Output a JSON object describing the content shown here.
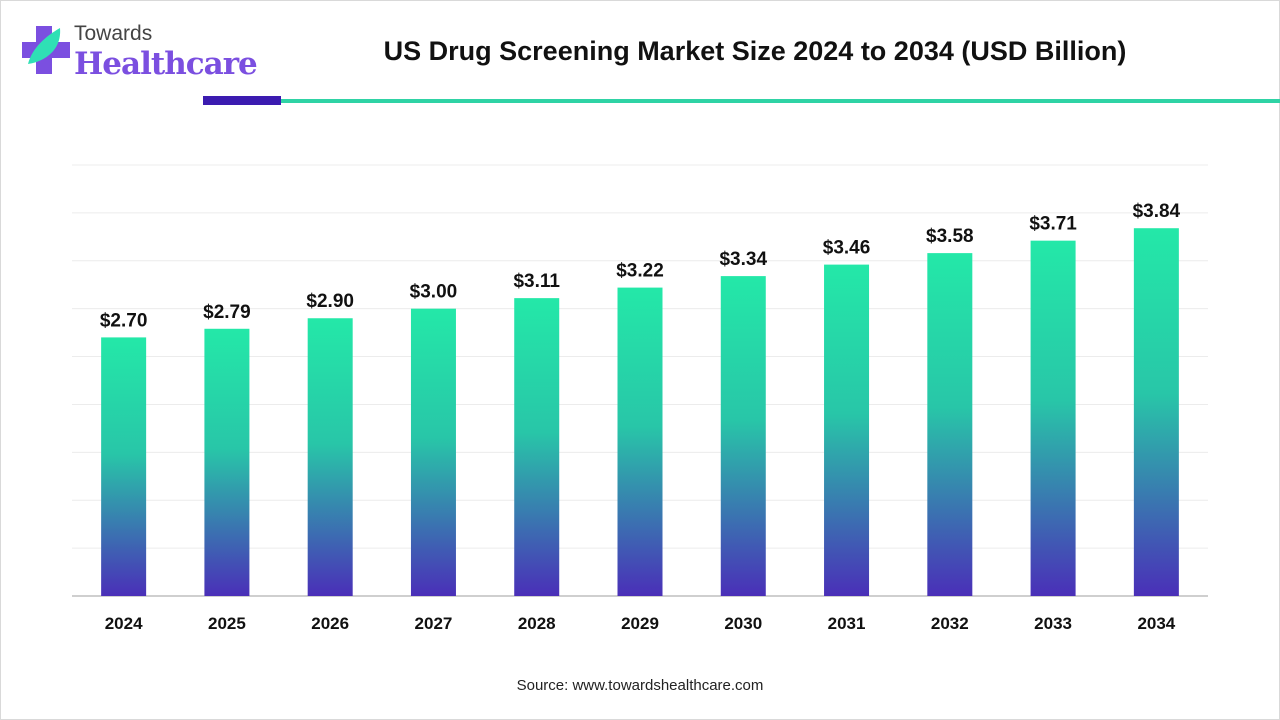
{
  "header": {
    "logo_line1": "Towards",
    "logo_line2": "Healthcare",
    "accent_colors": {
      "purple": "#3b1bb0",
      "teal": "#2fd3a5"
    }
  },
  "chart_data": {
    "type": "bar",
    "title": "US Drug Screening Market Size 2024 to 2034 (USD Billion)",
    "xlabel": "",
    "ylabel": "",
    "categories": [
      "2024",
      "2025",
      "2026",
      "2027",
      "2028",
      "2029",
      "2030",
      "2031",
      "2032",
      "2033",
      "2034"
    ],
    "values": [
      2.7,
      2.79,
      2.9,
      3.0,
      3.11,
      3.22,
      3.34,
      3.46,
      3.58,
      3.71,
      3.84
    ],
    "data_labels": [
      "$2.70",
      "$2.79",
      "$2.90",
      "$3.00",
      "$3.11",
      "$3.22",
      "$3.34",
      "$3.46",
      "$3.58",
      "$3.71",
      "$3.84"
    ],
    "ylim": [
      0,
      4.5
    ],
    "grid": true,
    "gradient": {
      "top": "#24e8a8",
      "bottom": "#4a2fb8"
    }
  },
  "footer": {
    "source": "Source: www.towardshealthcare.com"
  }
}
